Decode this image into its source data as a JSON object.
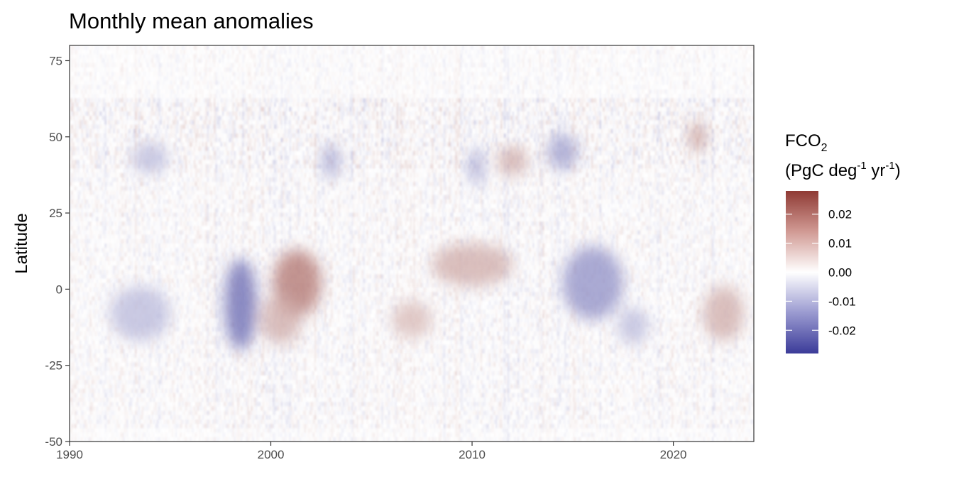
{
  "chart_data": {
    "type": "heatmap",
    "title": "Monthly mean anomalies",
    "xlabel": "",
    "ylabel": "Latitude",
    "xlim": [
      1990,
      2024
    ],
    "ylim": [
      -50,
      80
    ],
    "x_ticks": [
      1990,
      2000,
      2010,
      2020
    ],
    "y_ticks": [
      -50,
      -25,
      0,
      25,
      50,
      75
    ],
    "legend": {
      "title_line1_main": "FCO",
      "title_line1_sub": "2",
      "title_line2_open": "(PgC deg",
      "title_line2_sup1": "-1",
      "title_line2_mid": " yr",
      "title_line2_sup2": "-1",
      "title_line2_close": ")",
      "position": "right",
      "range": [
        -0.028,
        0.028
      ],
      "ticks": [
        0.02,
        0.01,
        0.0,
        -0.01,
        -0.02
      ],
      "tick_labels": [
        "0.02",
        "0.01",
        "0.00",
        "-0.01",
        "-0.02"
      ],
      "colors": {
        "low": "#3b3b99",
        "mid": "#ffffff",
        "high": "#8f3a34"
      }
    },
    "features": [
      {
        "year": 1998.5,
        "lat": -5,
        "value": -0.022,
        "w": 1.6,
        "h": 30
      },
      {
        "year": 2001.3,
        "lat": 2,
        "value": 0.02,
        "w": 2.4,
        "h": 22
      },
      {
        "year": 2000.5,
        "lat": -10,
        "value": 0.012,
        "w": 2.0,
        "h": 16
      },
      {
        "year": 2010.0,
        "lat": 8,
        "value": 0.012,
        "w": 4.0,
        "h": 14
      },
      {
        "year": 2016.0,
        "lat": 2,
        "value": -0.016,
        "w": 3.0,
        "h": 24
      },
      {
        "year": 2022.5,
        "lat": -8,
        "value": 0.012,
        "w": 2.0,
        "h": 18
      },
      {
        "year": 1993.5,
        "lat": -8,
        "value": -0.01,
        "w": 3.0,
        "h": 18
      },
      {
        "year": 2012.0,
        "lat": 42,
        "value": 0.012,
        "w": 1.5,
        "h": 10
      },
      {
        "year": 2003.0,
        "lat": 42,
        "value": -0.014,
        "w": 0.8,
        "h": 12
      },
      {
        "year": 2010.2,
        "lat": 40,
        "value": -0.016,
        "w": 0.6,
        "h": 12
      },
      {
        "year": 2014.5,
        "lat": 45,
        "value": -0.014,
        "w": 1.5,
        "h": 12
      },
      {
        "year": 2021.2,
        "lat": 50,
        "value": 0.015,
        "w": 0.8,
        "h": 10
      },
      {
        "year": 1994.0,
        "lat": 43,
        "value": -0.01,
        "w": 1.8,
        "h": 10
      },
      {
        "year": 2018.0,
        "lat": -12,
        "value": -0.01,
        "w": 1.5,
        "h": 12
      },
      {
        "year": 2007.0,
        "lat": -10,
        "value": 0.01,
        "w": 2.0,
        "h": 12
      }
    ]
  }
}
